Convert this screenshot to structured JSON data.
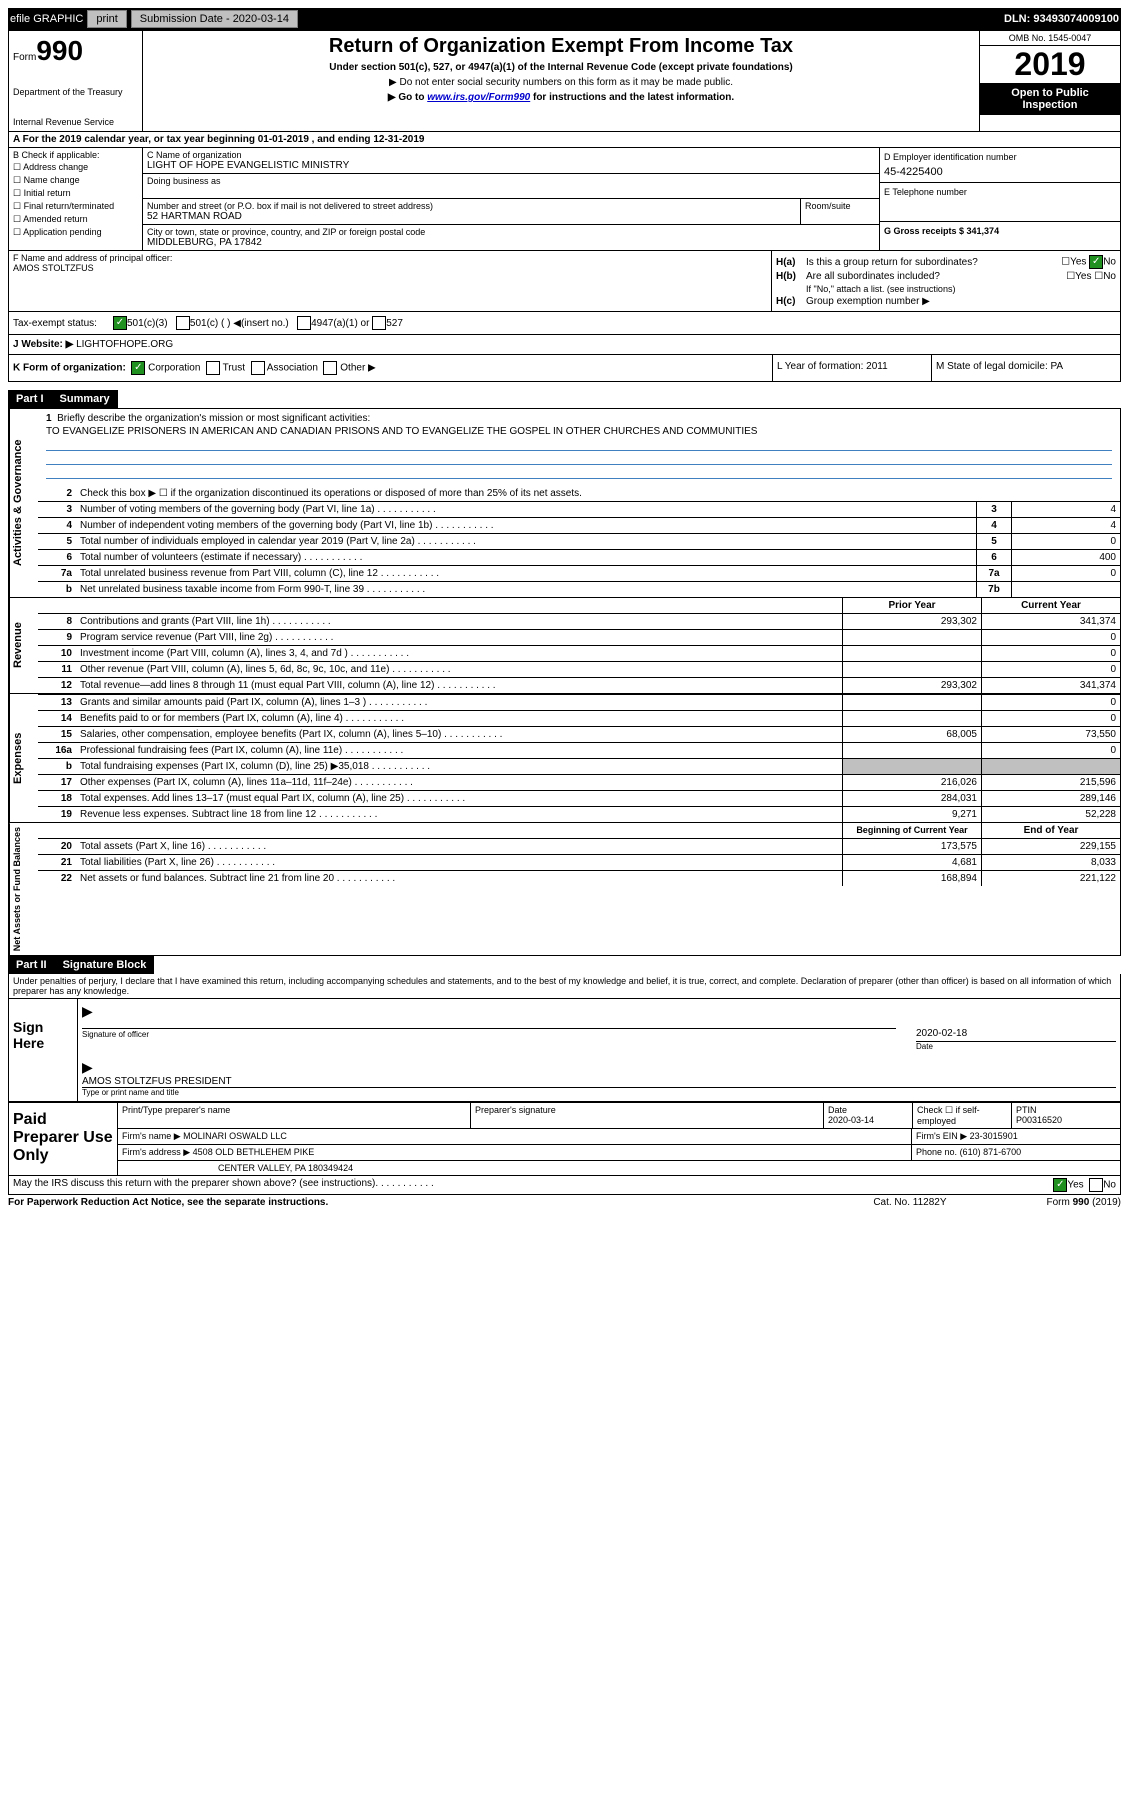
{
  "top_bar": {
    "efile": "efile GRAPHIC",
    "print": "print",
    "sub_date_label": "Submission Date - 2020-03-14",
    "dln": "DLN: 93493074009100"
  },
  "header": {
    "form_label": "Form",
    "form_num": "990",
    "dept": "Department of the Treasury",
    "irs": "Internal Revenue Service",
    "title": "Return of Organization Exempt From Income Tax",
    "subtitle": "Under section 501(c), 527, or 4947(a)(1) of the Internal Revenue Code (except private foundations)",
    "line1": "▶ Do not enter social security numbers on this form as it may be made public.",
    "line2_pre": "▶ Go to ",
    "line2_link": "www.irs.gov/Form990",
    "line2_post": " for instructions and the latest information.",
    "omb": "OMB No. 1545-0047",
    "year": "2019",
    "open": "Open to Public Inspection"
  },
  "row_a": "A For the 2019 calendar year, or tax year beginning 01-01-2019   , and ending 12-31-2019",
  "col_b": {
    "label": "B Check if applicable:",
    "opts": [
      "Address change",
      "Name change",
      "Initial return",
      "Final return/terminated",
      "Amended return",
      "Application pending"
    ]
  },
  "org": {
    "name_label": "C Name of organization",
    "name": "LIGHT OF HOPE EVANGELISTIC MINISTRY",
    "dba_label": "Doing business as",
    "addr_label": "Number and street (or P.O. box if mail is not delivered to street address)",
    "addr": "52 HARTMAN ROAD",
    "room_label": "Room/suite",
    "city_label": "City or town, state or province, country, and ZIP or foreign postal code",
    "city": "MIDDLEBURG, PA  17842"
  },
  "right": {
    "d_label": "D Employer identification number",
    "ein": "45-4225400",
    "e_label": "E Telephone number",
    "g_label": "G Gross receipts $ 341,374"
  },
  "f": {
    "label": "F  Name and address of principal officer:",
    "name": "AMOS STOLTZFUS"
  },
  "h": {
    "a_label": "Is this a group return for subordinates?",
    "b_label": "Are all subordinates included?",
    "b_note": "If \"No,\" attach a list. (see instructions)",
    "c_label": "Group exemption number ▶"
  },
  "i": {
    "label": "Tax-exempt status:",
    "o1": "501(c)(3)",
    "o2": "501(c) (  ) ◀(insert no.)",
    "o3": "4947(a)(1) or",
    "o4": "527"
  },
  "j": {
    "label": "J   Website: ▶",
    "val": "LIGHTOFHOPE.ORG"
  },
  "k": {
    "label": "K Form of organization:",
    "o1": "Corporation",
    "o2": "Trust",
    "o3": "Association",
    "o4": "Other ▶",
    "l": "L Year of formation: 2011",
    "m": "M State of legal domicile: PA"
  },
  "part1": {
    "header": "Part I",
    "title": "Summary",
    "mission_label": "Briefly describe the organization's mission or most significant activities:",
    "mission": "TO EVANGELIZE PRISONERS IN AMERICAN AND CANADIAN PRISONS AND TO EVANGELIZE THE GOSPEL IN OTHER CHURCHES AND COMMUNITIES",
    "line2": "Check this box ▶ ☐  if the organization discontinued its operations or disposed of more than 25% of its net assets.",
    "lines_ag": [
      {
        "n": "3",
        "d": "Number of voting members of the governing body (Part VI, line 1a)",
        "box": "3",
        "v": "4"
      },
      {
        "n": "4",
        "d": "Number of independent voting members of the governing body (Part VI, line 1b)",
        "box": "4",
        "v": "4"
      },
      {
        "n": "5",
        "d": "Total number of individuals employed in calendar year 2019 (Part V, line 2a)",
        "box": "5",
        "v": "0"
      },
      {
        "n": "6",
        "d": "Total number of volunteers (estimate if necessary)",
        "box": "6",
        "v": "400"
      },
      {
        "n": "7a",
        "d": "Total unrelated business revenue from Part VIII, column (C), line 12",
        "box": "7a",
        "v": "0"
      },
      {
        "n": "b",
        "d": "Net unrelated business taxable income from Form 990-T, line 39",
        "box": "7b",
        "v": ""
      }
    ],
    "col_headers": {
      "prior": "Prior Year",
      "curr": "Current Year"
    },
    "rev_lines": [
      {
        "n": "8",
        "d": "Contributions and grants (Part VIII, line 1h)",
        "p": "293,302",
        "c": "341,374"
      },
      {
        "n": "9",
        "d": "Program service revenue (Part VIII, line 2g)",
        "p": "",
        "c": "0"
      },
      {
        "n": "10",
        "d": "Investment income (Part VIII, column (A), lines 3, 4, and 7d )",
        "p": "",
        "c": "0"
      },
      {
        "n": "11",
        "d": "Other revenue (Part VIII, column (A), lines 5, 6d, 8c, 9c, 10c, and 11e)",
        "p": "",
        "c": "0"
      },
      {
        "n": "12",
        "d": "Total revenue—add lines 8 through 11 (must equal Part VIII, column (A), line 12)",
        "p": "293,302",
        "c": "341,374"
      }
    ],
    "exp_lines": [
      {
        "n": "13",
        "d": "Grants and similar amounts paid (Part IX, column (A), lines 1–3 )",
        "p": "",
        "c": "0"
      },
      {
        "n": "14",
        "d": "Benefits paid to or for members (Part IX, column (A), line 4)",
        "p": "",
        "c": "0"
      },
      {
        "n": "15",
        "d": "Salaries, other compensation, employee benefits (Part IX, column (A), lines 5–10)",
        "p": "68,005",
        "c": "73,550"
      },
      {
        "n": "16a",
        "d": "Professional fundraising fees (Part IX, column (A), line 11e)",
        "p": "",
        "c": "0"
      },
      {
        "n": "b",
        "d": "Total fundraising expenses (Part IX, column (D), line 25) ▶35,018",
        "p": "GRAY",
        "c": "GRAY"
      },
      {
        "n": "17",
        "d": "Other expenses (Part IX, column (A), lines 11a–11d, 11f–24e)",
        "p": "216,026",
        "c": "215,596"
      },
      {
        "n": "18",
        "d": "Total expenses. Add lines 13–17 (must equal Part IX, column (A), line 25)",
        "p": "284,031",
        "c": "289,146"
      },
      {
        "n": "19",
        "d": "Revenue less expenses. Subtract line 18 from line 12",
        "p": "9,271",
        "c": "52,228"
      }
    ],
    "na_headers": {
      "prior": "Beginning of Current Year",
      "curr": "End of Year"
    },
    "na_lines": [
      {
        "n": "20",
        "d": "Total assets (Part X, line 16)",
        "p": "173,575",
        "c": "229,155"
      },
      {
        "n": "21",
        "d": "Total liabilities (Part X, line 26)",
        "p": "4,681",
        "c": "8,033"
      },
      {
        "n": "22",
        "d": "Net assets or fund balances. Subtract line 21 from line 20",
        "p": "168,894",
        "c": "221,122"
      }
    ]
  },
  "side_labels": {
    "ag": "Activities & Governance",
    "rev": "Revenue",
    "exp": "Expenses",
    "na": "Net Assets or Fund Balances"
  },
  "part2": {
    "header": "Part II",
    "title": "Signature Block",
    "disclaimer": "Under penalties of perjury, I declare that I have examined this return, including accompanying schedules and statements, and to the best of my knowledge and belief, it is true, correct, and complete. Declaration of preparer (other than officer) is based on all information of which preparer has any knowledge.",
    "sign_here": "Sign Here",
    "sig_officer": "Signature of officer",
    "date_label": "Date",
    "date": "2020-02-18",
    "name_title": "AMOS STOLTZFUS  PRESIDENT",
    "type_label": "Type or print name and title"
  },
  "paid": {
    "label": "Paid Preparer Use Only",
    "h1": "Print/Type preparer's name",
    "h2": "Preparer's signature",
    "h3": "Date",
    "date": "2020-03-14",
    "h4": "Check ☐ if self-employed",
    "h5": "PTIN",
    "ptin": "P00316520",
    "firm_name_label": "Firm's name    ▶",
    "firm_name": "MOLINARI OSWALD LLC",
    "firm_ein_label": "Firm's EIN ▶",
    "firm_ein": "23-3015901",
    "firm_addr_label": "Firm's address ▶",
    "firm_addr": "4508 OLD BETHLEHEM PIKE",
    "firm_addr2": "CENTER VALLEY, PA  180349424",
    "phone_label": "Phone no.",
    "phone": "(610) 871-6700",
    "discuss": "May the IRS discuss this return with the preparer shown above? (see instructions)"
  },
  "footer": {
    "left": "For Paperwork Reduction Act Notice, see the separate instructions.",
    "mid": "Cat. No. 11282Y",
    "right": "Form 990 (2019)"
  }
}
